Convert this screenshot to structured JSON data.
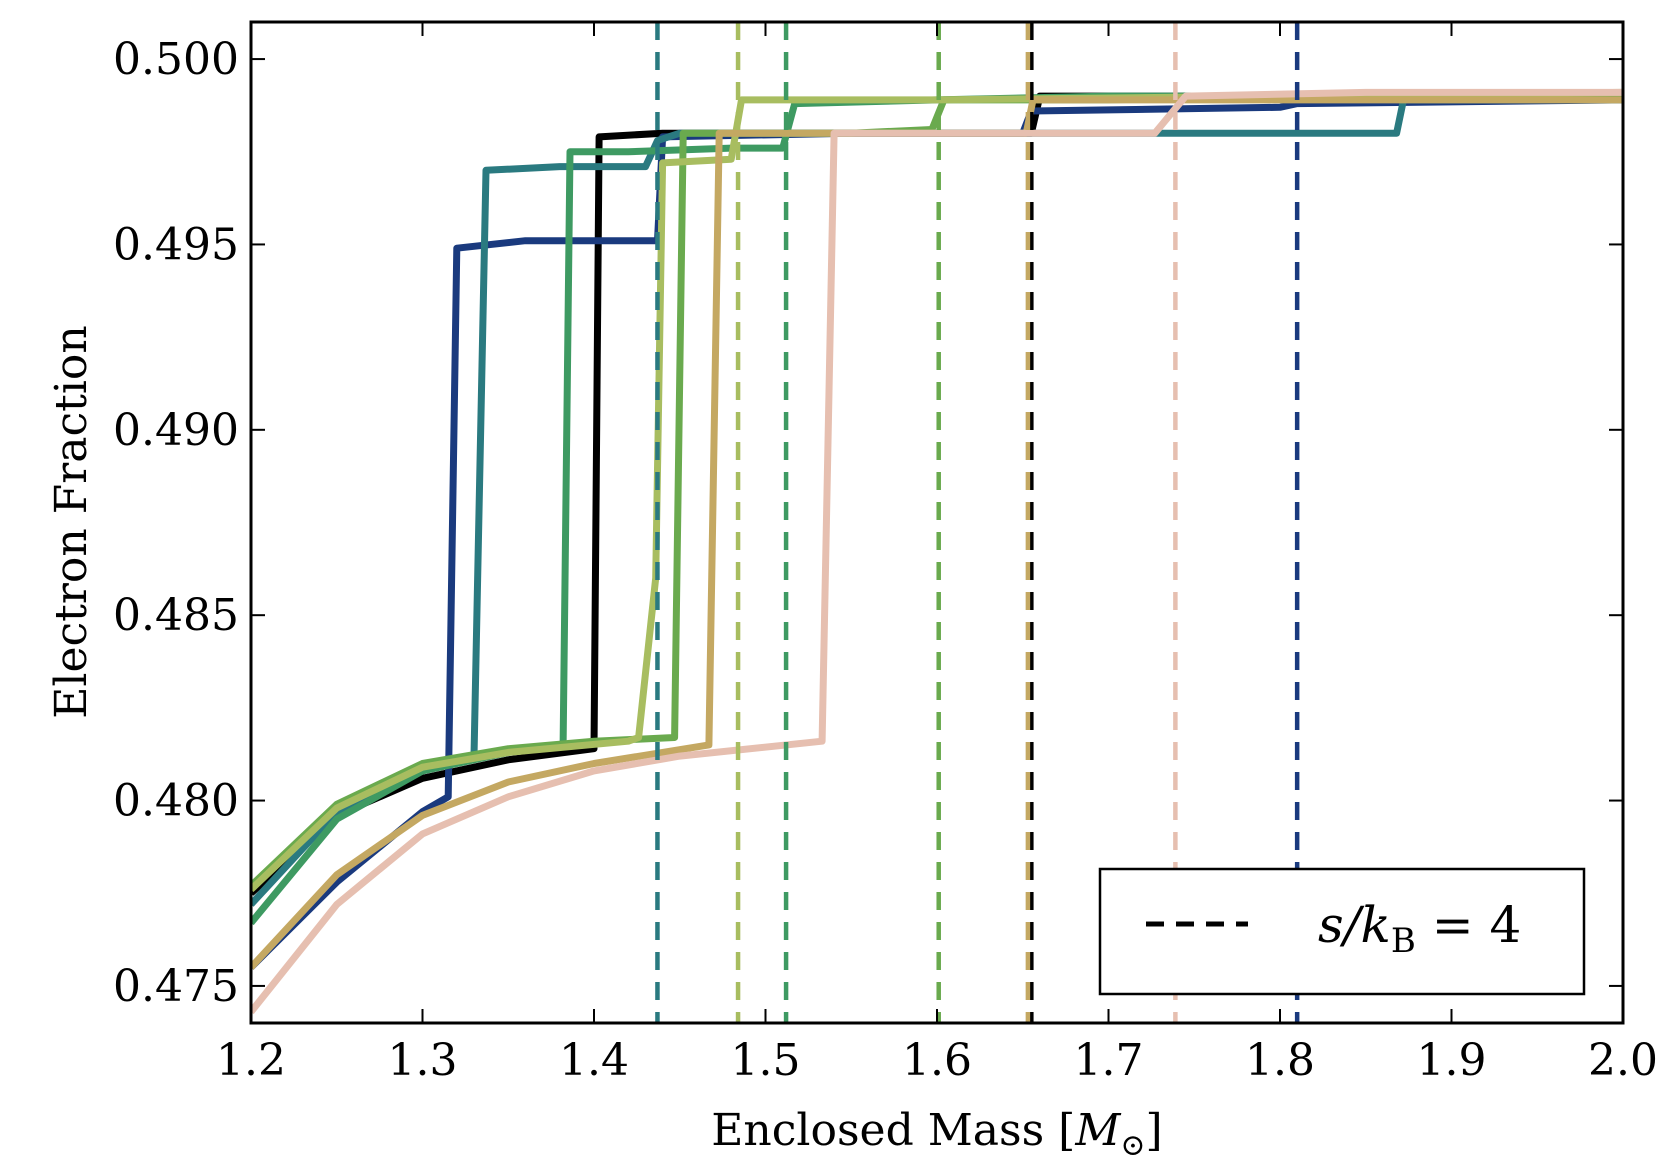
{
  "chart_data": {
    "type": "line",
    "xlabel": "Enclosed Mass [M⊙]",
    "ylabel": "Electron Fraction",
    "xlim": [
      1.2,
      2.0
    ],
    "ylim": [
      0.474,
      0.501
    ],
    "xticks": [
      1.2,
      1.3,
      1.4,
      1.5,
      1.6,
      1.7,
      1.8,
      1.9,
      2.0
    ],
    "xtick_labels": [
      "1.2",
      "1.3",
      "1.4",
      "1.5",
      "1.6",
      "1.7",
      "1.8",
      "1.9",
      "2.0"
    ],
    "yticks": [
      0.475,
      0.48,
      0.485,
      0.49,
      0.495,
      0.5
    ],
    "ytick_labels": [
      "0.475",
      "0.480",
      "0.485",
      "0.490",
      "0.495",
      "0.500"
    ],
    "grid": false,
    "legend": {
      "position": "lower-right",
      "entries": [
        {
          "label": "s/k_B = 4",
          "text": "s/kB = 4",
          "style": "dashed",
          "color": "#000000"
        }
      ]
    },
    "series": [
      {
        "name": "black",
        "color": "#000000",
        "points": [
          [
            1.2,
            0.4775
          ],
          [
            1.25,
            0.4796
          ],
          [
            1.3,
            0.4806
          ],
          [
            1.35,
            0.4811
          ],
          [
            1.4,
            0.4814
          ],
          [
            1.403,
            0.4979
          ],
          [
            1.44,
            0.498
          ],
          [
            1.45,
            0.498
          ],
          [
            1.5,
            0.498
          ],
          [
            1.6,
            0.498
          ],
          [
            1.655,
            0.498
          ],
          [
            1.66,
            0.499
          ],
          [
            1.8,
            0.499
          ],
          [
            2.0,
            0.499
          ]
        ],
        "dashed_x": 1.655
      },
      {
        "name": "dark-blue",
        "color": "#1a3a7e",
        "points": [
          [
            1.2,
            0.4755
          ],
          [
            1.25,
            0.4778
          ],
          [
            1.3,
            0.4797
          ],
          [
            1.315,
            0.4801
          ],
          [
            1.32,
            0.4949
          ],
          [
            1.36,
            0.4951
          ],
          [
            1.4,
            0.4951
          ],
          [
            1.437,
            0.4951
          ],
          [
            1.44,
            0.4979
          ],
          [
            1.55,
            0.498
          ],
          [
            1.65,
            0.498
          ],
          [
            1.655,
            0.4986
          ],
          [
            1.8,
            0.4987
          ],
          [
            1.81,
            0.4988
          ],
          [
            2.0,
            0.4989
          ]
        ],
        "dashed_x": 1.81
      },
      {
        "name": "teal",
        "color": "#2a7a80",
        "points": [
          [
            1.2,
            0.4772
          ],
          [
            1.25,
            0.4797
          ],
          [
            1.3,
            0.4808
          ],
          [
            1.33,
            0.4812
          ],
          [
            1.337,
            0.497
          ],
          [
            1.38,
            0.4971
          ],
          [
            1.43,
            0.4971
          ],
          [
            1.437,
            0.4978
          ],
          [
            1.45,
            0.498
          ],
          [
            1.55,
            0.498
          ],
          [
            1.65,
            0.498
          ],
          [
            1.8,
            0.498
          ],
          [
            1.868,
            0.498
          ],
          [
            1.872,
            0.4989
          ],
          [
            2.0,
            0.4989
          ]
        ],
        "dashed_x": 1.437
      },
      {
        "name": "sea-green",
        "color": "#3e9a62",
        "points": [
          [
            1.2,
            0.4767
          ],
          [
            1.25,
            0.4795
          ],
          [
            1.3,
            0.4808
          ],
          [
            1.35,
            0.4813
          ],
          [
            1.382,
            0.4815
          ],
          [
            1.386,
            0.4975
          ],
          [
            1.42,
            0.4975
          ],
          [
            1.48,
            0.4976
          ],
          [
            1.51,
            0.4976
          ],
          [
            1.517,
            0.4988
          ],
          [
            1.6,
            0.4989
          ],
          [
            1.7,
            0.499
          ],
          [
            2.0,
            0.499
          ]
        ],
        "dashed_x": 1.512
      },
      {
        "name": "green",
        "color": "#6aaa4e",
        "points": [
          [
            1.2,
            0.4777
          ],
          [
            1.25,
            0.4799
          ],
          [
            1.3,
            0.481
          ],
          [
            1.35,
            0.4814
          ],
          [
            1.4,
            0.4816
          ],
          [
            1.447,
            0.4817
          ],
          [
            1.452,
            0.498
          ],
          [
            1.5,
            0.498
          ],
          [
            1.55,
            0.498
          ],
          [
            1.597,
            0.4981
          ],
          [
            1.604,
            0.4989
          ],
          [
            1.7,
            0.4989
          ],
          [
            1.8,
            0.499
          ],
          [
            2.0,
            0.499
          ]
        ],
        "dashed_x": 1.601
      },
      {
        "name": "olive-green",
        "color": "#a8bd60",
        "points": [
          [
            1.2,
            0.4776
          ],
          [
            1.25,
            0.4798
          ],
          [
            1.3,
            0.4809
          ],
          [
            1.35,
            0.4813
          ],
          [
            1.42,
            0.4816
          ],
          [
            1.426,
            0.4817
          ],
          [
            1.436,
            0.486
          ],
          [
            1.44,
            0.4972
          ],
          [
            1.48,
            0.4973
          ],
          [
            1.486,
            0.4989
          ],
          [
            1.6,
            0.4989
          ],
          [
            1.8,
            0.499
          ],
          [
            2.0,
            0.4991
          ]
        ],
        "dashed_x": 1.484
      },
      {
        "name": "tan",
        "color": "#c4a862",
        "points": [
          [
            1.2,
            0.4755
          ],
          [
            1.25,
            0.478
          ],
          [
            1.3,
            0.4796
          ],
          [
            1.35,
            0.4805
          ],
          [
            1.4,
            0.481
          ],
          [
            1.467,
            0.4815
          ],
          [
            1.473,
            0.498
          ],
          [
            1.55,
            0.498
          ],
          [
            1.652,
            0.498
          ],
          [
            1.656,
            0.4989
          ],
          [
            1.8,
            0.4989
          ],
          [
            2.0,
            0.4989
          ]
        ],
        "dashed_x": 1.653
      },
      {
        "name": "pink",
        "color": "#e6bfb0",
        "points": [
          [
            1.2,
            0.4743
          ],
          [
            1.25,
            0.4772
          ],
          [
            1.3,
            0.4791
          ],
          [
            1.35,
            0.4801
          ],
          [
            1.4,
            0.4808
          ],
          [
            1.45,
            0.4812
          ],
          [
            1.533,
            0.4816
          ],
          [
            1.54,
            0.498
          ],
          [
            1.6,
            0.498
          ],
          [
            1.727,
            0.498
          ],
          [
            1.745,
            0.499
          ],
          [
            1.85,
            0.4991
          ],
          [
            2.0,
            0.4991
          ]
        ],
        "dashed_x": 1.739
      }
    ]
  }
}
